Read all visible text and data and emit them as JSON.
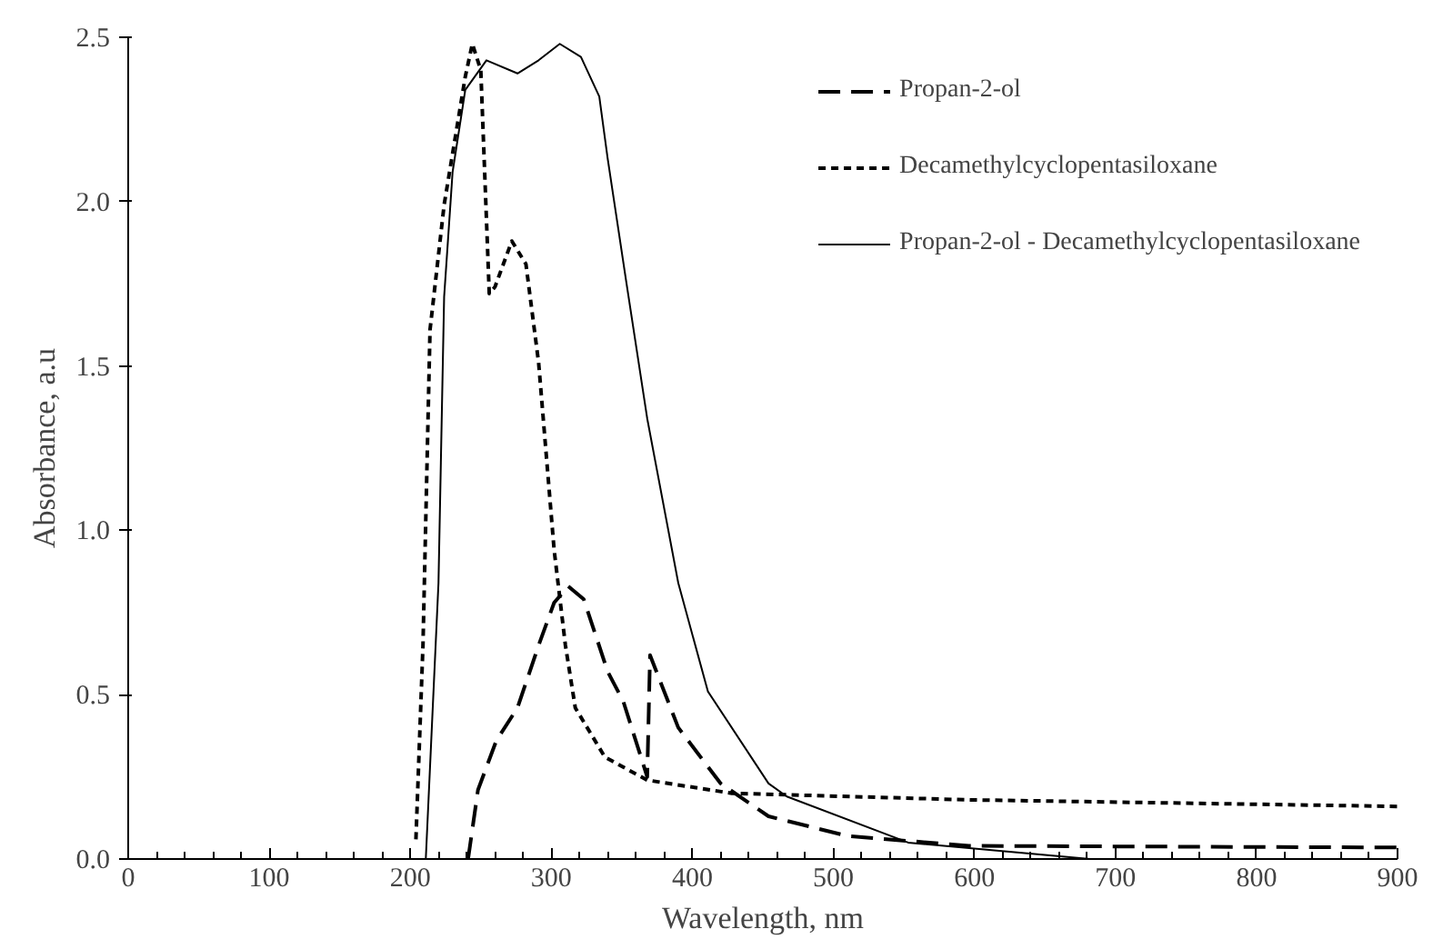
{
  "chart_data": {
    "type": "line",
    "xlabel": "Wavelength, nm",
    "ylabel": "Absorbance, a.u",
    "xlim": [
      0,
      900
    ],
    "ylim": [
      0,
      2.5
    ],
    "xticks": [
      0,
      100,
      200,
      300,
      400,
      500,
      600,
      700,
      800,
      900
    ],
    "yticks": [
      {
        "value": 0,
        "label": "0.0"
      },
      {
        "value": 0.5,
        "label": "0.5"
      },
      {
        "value": 1,
        "label": "1.0"
      },
      {
        "value": 1.5,
        "label": "1.5"
      },
      {
        "value": 2,
        "label": "2.0"
      },
      {
        "value": 2.5,
        "label": "2.5"
      }
    ],
    "grid": false,
    "legend": "top right",
    "marker": "none",
    "series": [
      {
        "name": "Propan-2-ol",
        "color": "#000000",
        "line_style": "dashed",
        "x": [
          241,
          248,
          261,
          276,
          291,
          302,
          312,
          323,
          340,
          351,
          368,
          370,
          390,
          420,
          454,
          510,
          596,
          900
        ],
        "values": [
          0.0,
          0.21,
          0.36,
          0.46,
          0.65,
          0.78,
          0.83,
          0.79,
          0.57,
          0.48,
          0.25,
          0.62,
          0.4,
          0.23,
          0.13,
          0.07,
          0.04,
          0.035
        ]
      },
      {
        "name": "Decamethylcyclopentasiloxane",
        "color": "#000000",
        "line_style": "dotted",
        "x": [
          204,
          209,
          214,
          224,
          239,
          244,
          250,
          256,
          260,
          272,
          282,
          291,
          302,
          310,
          317,
          338,
          368,
          428,
          596,
          900
        ],
        "values": [
          0.06,
          0.65,
          1.61,
          1.99,
          2.38,
          2.48,
          2.4,
          1.72,
          1.74,
          1.88,
          1.81,
          1.51,
          0.94,
          0.65,
          0.46,
          0.31,
          0.24,
          0.2,
          0.18,
          0.16
        ]
      },
      {
        "name": "Propan-2-ol - Decamethylcyclopentasiloxane",
        "color": "#000000",
        "line_style": "solid",
        "x": [
          211,
          220,
          224,
          230,
          239,
          254,
          276,
          291,
          306,
          321,
          334,
          340,
          353,
          368,
          390,
          411,
          454,
          467,
          553,
          682
        ],
        "values": [
          0.0,
          0.84,
          1.71,
          2.09,
          2.34,
          2.43,
          2.39,
          2.43,
          2.48,
          2.44,
          2.32,
          2.13,
          1.76,
          1.34,
          0.84,
          0.51,
          0.23,
          0.19,
          0.05,
          0.0
        ]
      }
    ]
  }
}
